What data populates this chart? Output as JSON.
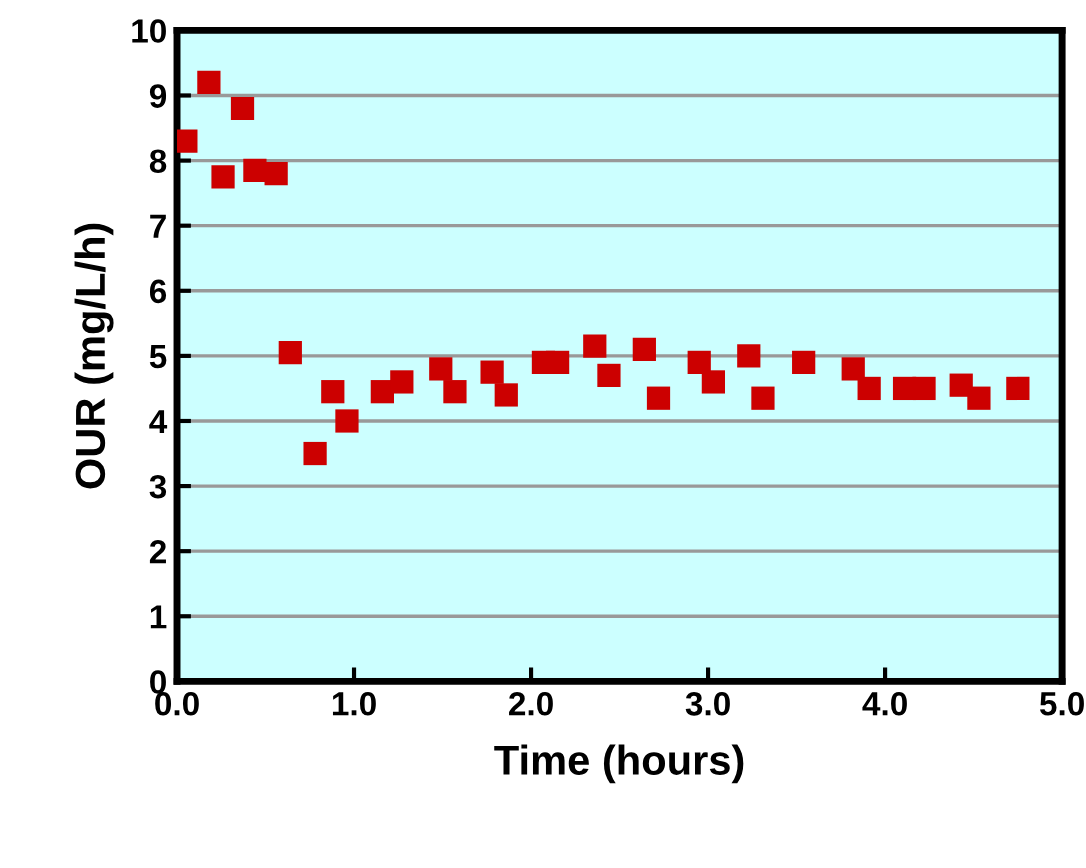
{
  "chart_data": {
    "type": "scatter",
    "xlabel": "Time (hours)",
    "ylabel": "OUR (mg/L/h)",
    "xlim": [
      0,
      5
    ],
    "ylim": [
      0,
      10
    ],
    "xticks": [
      {
        "value": 0,
        "label": "0.0"
      },
      {
        "value": 1,
        "label": "1.0"
      },
      {
        "value": 2,
        "label": "2.0"
      },
      {
        "value": 3,
        "label": "3.0"
      },
      {
        "value": 4,
        "label": "4.0"
      },
      {
        "value": 5,
        "label": "5.0"
      }
    ],
    "yticks": [
      0,
      1,
      2,
      3,
      4,
      5,
      6,
      7,
      8,
      9,
      10
    ],
    "grid": "y",
    "legend": false,
    "marker": "square",
    "series": [
      {
        "color": "#cc0000",
        "x": [
          0.05,
          0.18,
          0.26,
          0.37,
          0.44,
          0.56,
          0.64,
          0.78,
          0.88,
          0.96,
          1.16,
          1.27,
          1.49,
          1.57,
          1.78,
          1.86,
          2.07,
          2.15,
          2.36,
          2.44,
          2.64,
          2.72,
          2.95,
          3.03,
          3.23,
          3.31,
          3.54,
          3.82,
          3.91,
          4.11,
          4.22,
          4.43,
          4.53,
          4.75
        ],
        "values": [
          8.3,
          9.2,
          7.75,
          8.8,
          7.85,
          7.8,
          5.05,
          3.5,
          4.45,
          4.0,
          4.45,
          4.6,
          4.8,
          4.45,
          4.75,
          4.4,
          4.9,
          4.9,
          5.15,
          4.7,
          5.1,
          4.35,
          4.9,
          4.6,
          5.0,
          4.35,
          4.9,
          4.8,
          4.5,
          4.5,
          4.5,
          4.55,
          4.35,
          4.5
        ]
      }
    ]
  }
}
